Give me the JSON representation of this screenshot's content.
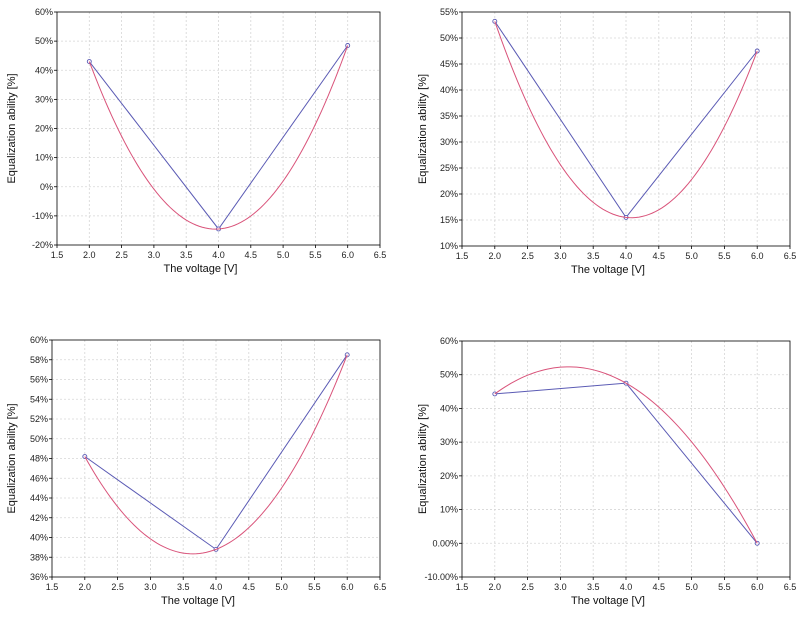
{
  "chart_data": [
    {
      "type": "line",
      "xlabel": "The voltage [V]",
      "ylabel": "Equalization ability [%]",
      "xlim": [
        1.5,
        6.5
      ],
      "ylim": [
        -20,
        60
      ],
      "x_ticks": [
        "1.5",
        "2.0",
        "2.5",
        "3.0",
        "3.5",
        "4.0",
        "4.5",
        "5.0",
        "5.5",
        "6.0",
        "6.5"
      ],
      "y_ticks": [
        "-20%",
        "-10%",
        "0%",
        "10%",
        "20%",
        "30%",
        "40%",
        "50%",
        "60%"
      ],
      "grid": true,
      "series": [
        {
          "x": [
            2,
            4,
            6
          ],
          "y": [
            43,
            -14.5,
            48.5
          ],
          "color": "#5a5ab4",
          "markers": true
        },
        {
          "fit": "quadratic",
          "x": [
            2,
            4,
            6
          ],
          "y": [
            43,
            -14.5,
            48.5
          ],
          "color": "#d9537a"
        }
      ]
    },
    {
      "type": "line",
      "xlabel": "The voltage [V]",
      "ylabel": "Equalization ability [%]",
      "xlim": [
        1.5,
        6.5
      ],
      "ylim": [
        10,
        55
      ],
      "x_ticks": [
        "1.5",
        "2.0",
        "2.5",
        "3.0",
        "3.5",
        "4.0",
        "4.5",
        "5.0",
        "5.5",
        "6.0",
        "6.5"
      ],
      "y_ticks": [
        "10%",
        "15%",
        "20%",
        "25%",
        "30%",
        "35%",
        "40%",
        "45%",
        "50%",
        "55%"
      ],
      "grid": true,
      "series": [
        {
          "x": [
            2,
            4,
            6
          ],
          "y": [
            53.2,
            15.5,
            47.5
          ],
          "color": "#5a5ab4",
          "markers": true
        },
        {
          "fit": "quadratic",
          "x": [
            2,
            4,
            6
          ],
          "y": [
            53.2,
            15.5,
            47.5
          ],
          "color": "#d9537a"
        }
      ]
    },
    {
      "type": "line",
      "xlabel": "The voltage [V]",
      "ylabel": "Equalization ability [%]",
      "xlim": [
        1.5,
        6.5
      ],
      "ylim": [
        36,
        60
      ],
      "x_ticks": [
        "1.5",
        "2.0",
        "2.5",
        "3.0",
        "3.5",
        "4.0",
        "4.5",
        "5.0",
        "5.5",
        "6.0",
        "6.5"
      ],
      "y_ticks": [
        "36%",
        "38%",
        "40%",
        "42%",
        "44%",
        "46%",
        "48%",
        "50%",
        "52%",
        "54%",
        "56%",
        "58%",
        "60%"
      ],
      "grid": true,
      "series": [
        {
          "x": [
            2,
            4,
            6
          ],
          "y": [
            48.2,
            38.8,
            58.5
          ],
          "color": "#5a5ab4",
          "markers": true
        },
        {
          "fit": "quadratic",
          "x": [
            2,
            4,
            6
          ],
          "y": [
            48.2,
            38.8,
            58.5
          ],
          "color": "#d9537a"
        }
      ]
    },
    {
      "type": "line",
      "xlabel": "The voltage [V]",
      "ylabel": "Equalization ability [%]",
      "xlim": [
        1.5,
        6.5
      ],
      "ylim": [
        -10,
        60
      ],
      "x_ticks": [
        "1.5",
        "2.0",
        "2.5",
        "3.0",
        "3.5",
        "4.0",
        "4.5",
        "5.0",
        "5.5",
        "6.0",
        "6.5"
      ],
      "y_ticks": [
        "-10.00%",
        "0.00%",
        "10%",
        "20%",
        "30%",
        "40%",
        "50%",
        "60%"
      ],
      "grid": true,
      "series": [
        {
          "x": [
            2,
            4,
            6
          ],
          "y": [
            44.3,
            47.5,
            0
          ],
          "color": "#5a5ab4",
          "markers": true
        },
        {
          "fit": "quadratic",
          "x": [
            2,
            4,
            6
          ],
          "y": [
            44.3,
            47.5,
            0
          ],
          "color": "#d9537a"
        }
      ]
    }
  ]
}
